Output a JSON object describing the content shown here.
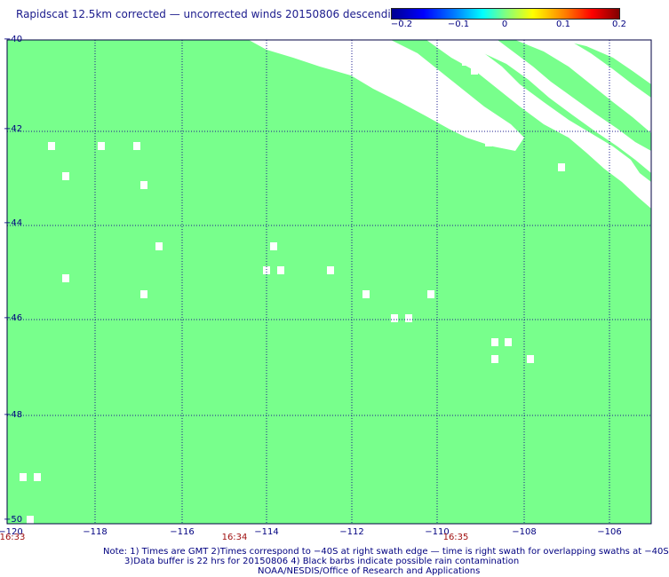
{
  "title": "Rapidscat 12.5km corrected — uncorrected winds 20150806 descending",
  "colorbar": {
    "ticks": [
      "−0.2",
      "−0.1",
      "0",
      "0.1",
      "0.2"
    ],
    "colors": [
      "#000090",
      "#0000ff",
      "#00ffff",
      "#80ff80",
      "#ffff00",
      "#ff0000",
      "#800000"
    ]
  },
  "map": {
    "field_color": "#78ff8c",
    "nodata_color": "#ffffff",
    "grid_color": "#1a1a8c",
    "lat_labels": [
      "−40",
      "−42",
      "−44",
      "−46",
      "−48",
      "−50"
    ],
    "lon_labels": [
      "−120",
      "−118",
      "−116",
      "−114",
      "−112",
      "−110",
      "−108",
      "−106"
    ],
    "time_labels": [
      "16:33",
      "16:34",
      "16:35"
    ]
  },
  "notes": {
    "line1": "Note: 1) Times are GMT 2)Times correspond to −40S at right swath edge — time is right swath for overlapping swaths at −40S",
    "line2": "3)Data buffer is 22 hrs for 20150806 4) Black barbs indicate possible rain contamination",
    "line3": "NOAA/NESDIS/Office of Research and Applications"
  }
}
